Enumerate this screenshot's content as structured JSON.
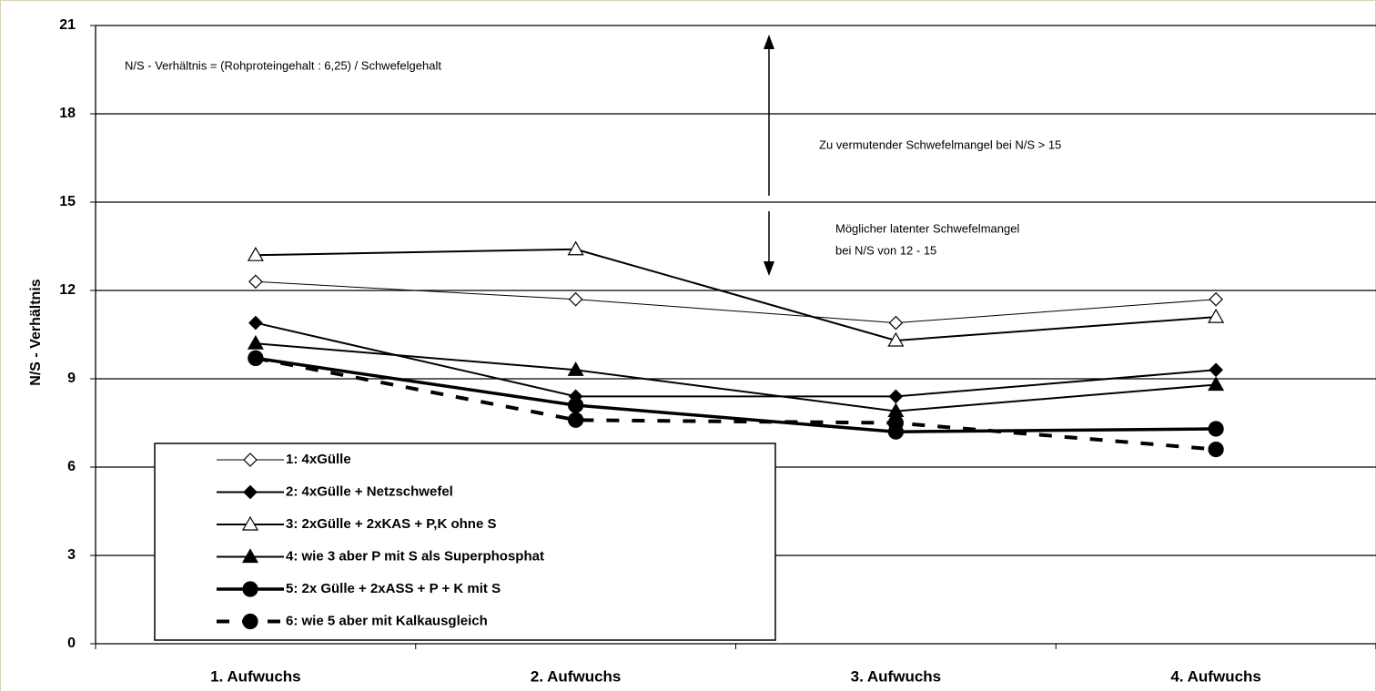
{
  "chart_data": {
    "type": "line",
    "y_label": "N/S - Verhältnis",
    "annotations": [
      "N/S - Verhältnis = (Rohproteingehalt : 6,25) / Schwefelgehalt",
      "Zu vermutender Schwefelmangel bei N/S  > 15",
      "Möglicher latenter Schwefelmangel",
      "bei N/S von 12 - 15"
    ],
    "categories": [
      "1. Aufwuchs",
      "2. Aufwuchs",
      "3. Aufwuchs",
      "4. Aufwuchs"
    ],
    "ylim": [
      0,
      21
    ],
    "yticks": [
      0,
      3,
      6,
      9,
      12,
      15,
      18,
      21
    ],
    "grid": true,
    "series": [
      {
        "name": "1: 4xGülle",
        "color": "#000000",
        "width": 1,
        "marker": "diamond-open",
        "values": [
          12.3,
          11.7,
          10.9,
          11.7
        ]
      },
      {
        "name": "2: 4xGülle + Netzschwefel",
        "color": "#000000",
        "width": 2,
        "marker": "diamond",
        "values": [
          10.9,
          8.4,
          8.4,
          9.3
        ]
      },
      {
        "name": "3: 2xGülle + 2xKAS + P,K ohne S",
        "color": "#000000",
        "width": 2,
        "marker": "triangle-open",
        "values": [
          13.2,
          13.4,
          10.3,
          11.1
        ]
      },
      {
        "name": "4: wie 3 aber P mit S als Superphosphat",
        "color": "#000000",
        "width": 2,
        "marker": "triangle",
        "values": [
          10.2,
          9.3,
          7.9,
          8.8
        ]
      },
      {
        "name": "5: 2x Gülle + 2xASS + P + K mit S",
        "color": "#000000",
        "width": 3.5,
        "marker": "circle",
        "values": [
          9.7,
          8.1,
          7.2,
          7.3
        ]
      },
      {
        "name": "6: wie 5 aber mit Kalkausgleich",
        "color": "#000000",
        "width": 4,
        "marker": "circle",
        "dash": true,
        "values": [
          9.7,
          7.6,
          7.5,
          6.6
        ]
      }
    ]
  }
}
